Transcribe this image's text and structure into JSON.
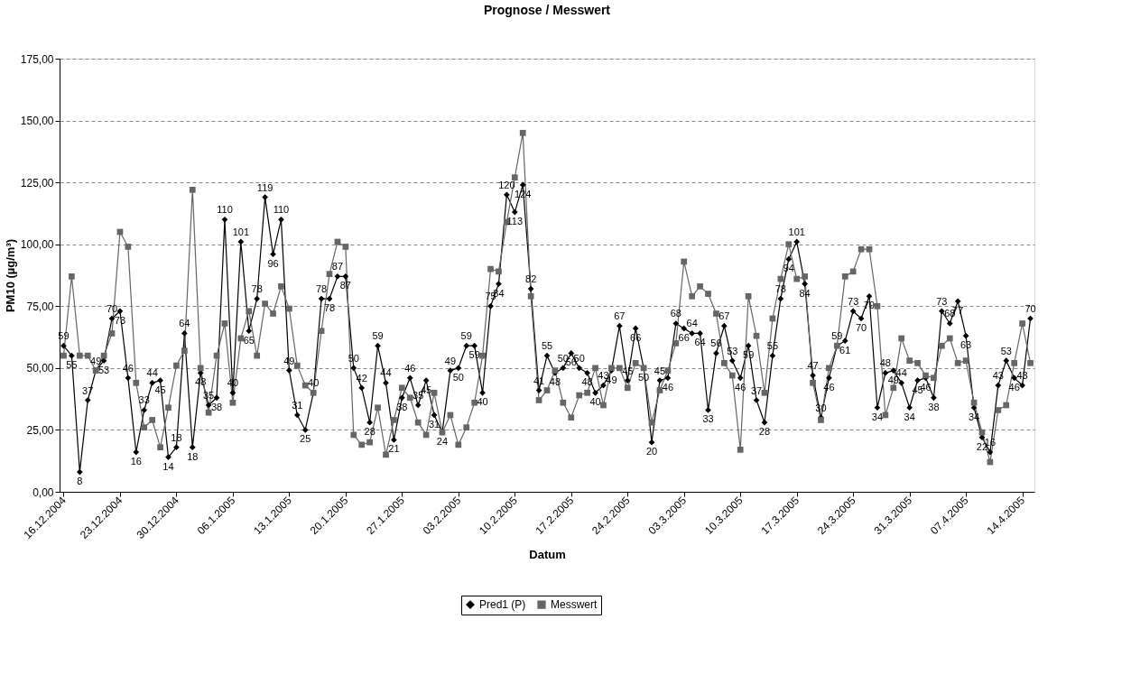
{
  "chart_data": {
    "type": "line",
    "title": "Prognose / Messwert",
    "xlabel": "Datum",
    "ylabel": "PM10 (µg/m³)",
    "x": [
      "2004-12-16",
      "2004-12-17",
      "2004-12-18",
      "2004-12-19",
      "2004-12-20",
      "2004-12-21",
      "2004-12-22",
      "2004-12-23",
      "2004-12-24",
      "2004-12-25",
      "2004-12-26",
      "2004-12-27",
      "2004-12-28",
      "2004-12-29",
      "2004-12-30",
      "2004-12-31",
      "2005-01-01",
      "2005-01-02",
      "2005-01-03",
      "2005-01-04",
      "2005-01-05",
      "2005-01-06",
      "2005-01-07",
      "2005-01-08",
      "2005-01-09",
      "2005-01-10",
      "2005-01-11",
      "2005-01-12",
      "2005-01-13",
      "2005-01-14",
      "2005-01-15",
      "2005-01-16",
      "2005-01-17",
      "2005-01-18",
      "2005-01-19",
      "2005-01-20",
      "2005-01-21",
      "2005-01-22",
      "2005-01-23",
      "2005-01-24",
      "2005-01-25",
      "2005-01-26",
      "2005-01-27",
      "2005-01-28",
      "2005-01-29",
      "2005-01-30",
      "2005-01-31",
      "2005-02-01",
      "2005-02-02",
      "2005-02-03",
      "2005-02-04",
      "2005-02-05",
      "2005-02-06",
      "2005-02-07",
      "2005-02-08",
      "2005-02-09",
      "2005-02-10",
      "2005-02-11",
      "2005-02-12",
      "2005-02-13",
      "2005-02-14",
      "2005-02-15",
      "2005-02-16",
      "2005-02-17",
      "2005-02-18",
      "2005-02-19",
      "2005-02-20",
      "2005-02-21",
      "2005-02-22",
      "2005-02-23",
      "2005-02-24",
      "2005-02-25",
      "2005-02-26",
      "2005-02-27",
      "2005-02-28",
      "2005-03-01",
      "2005-03-02",
      "2005-03-03",
      "2005-03-04",
      "2005-03-05",
      "2005-03-06",
      "2005-03-07",
      "2005-03-08",
      "2005-03-09",
      "2005-03-10",
      "2005-03-11",
      "2005-03-12",
      "2005-03-13",
      "2005-03-14",
      "2005-03-15",
      "2005-03-16",
      "2005-03-17",
      "2005-03-18",
      "2005-03-19",
      "2005-03-20",
      "2005-03-21",
      "2005-03-22",
      "2005-03-23",
      "2005-03-24",
      "2005-03-25",
      "2005-03-26",
      "2005-03-27",
      "2005-03-28",
      "2005-03-29",
      "2005-03-30",
      "2005-03-31",
      "2005-04-01",
      "2005-04-02",
      "2005-04-03",
      "2005-04-04",
      "2005-04-05",
      "2005-04-06",
      "2005-04-07",
      "2005-04-08",
      "2005-04-09",
      "2005-04-10",
      "2005-04-11",
      "2005-04-12",
      "2005-04-13",
      "2005-04-14",
      "2005-04-15"
    ],
    "xlim": [
      "2004-12-15T12:00",
      "2005-04-15T12:00"
    ],
    "xticks": [
      {
        "value": "2004-12-16",
        "label": "16.12.2004"
      },
      {
        "value": "2004-12-23",
        "label": "23.12.2004"
      },
      {
        "value": "2004-12-30",
        "label": "30.12.2004"
      },
      {
        "value": "2005-01-06",
        "label": "06.1.2005"
      },
      {
        "value": "2005-01-13",
        "label": "13.1.2005"
      },
      {
        "value": "2005-01-20",
        "label": "20.1.2005"
      },
      {
        "value": "2005-01-27",
        "label": "27.1.2005"
      },
      {
        "value": "2005-02-03",
        "label": "03.2.2005"
      },
      {
        "value": "2005-02-10",
        "label": "10.2.2005"
      },
      {
        "value": "2005-02-17",
        "label": "17.2.2005"
      },
      {
        "value": "2005-02-24",
        "label": "24.2.2005"
      },
      {
        "value": "2005-03-03",
        "label": "03.3.2005"
      },
      {
        "value": "2005-03-10",
        "label": "10.3.2005"
      },
      {
        "value": "2005-03-17",
        "label": "17.3.2005"
      },
      {
        "value": "2005-03-24",
        "label": "24.3.2005"
      },
      {
        "value": "2005-03-31",
        "label": "31.3.2005"
      },
      {
        "value": "2005-04-07",
        "label": "07.4.2005"
      },
      {
        "value": "2005-04-14",
        "label": "14.4.2005"
      }
    ],
    "ylim": [
      0,
      175
    ],
    "yticks": [
      {
        "value": 0,
        "label": "0,00"
      },
      {
        "value": 25,
        "label": "25,00"
      },
      {
        "value": 50,
        "label": "50,00"
      },
      {
        "value": 75,
        "label": "75,00"
      },
      {
        "value": 100,
        "label": "100,00"
      },
      {
        "value": 125,
        "label": "125,00"
      },
      {
        "value": 150,
        "label": "150,00"
      },
      {
        "value": 175,
        "label": "175,00"
      }
    ],
    "grid": "y",
    "legend": "bottom",
    "line_style": "solid",
    "series": [
      {
        "name": "Pred1 (P)",
        "color": "#000000",
        "marker": "diamond",
        "data_labels": true,
        "values": [
          59,
          55,
          8,
          37,
          49,
          53,
          70,
          73,
          46,
          16,
          33,
          44,
          45,
          14,
          18,
          64,
          18,
          48,
          35,
          38,
          110,
          40,
          101,
          65,
          78,
          119,
          96,
          110,
          49,
          31,
          25,
          40,
          78,
          78,
          87,
          87,
          50,
          42,
          28,
          59,
          44,
          21,
          38,
          46,
          35,
          45,
          31,
          24,
          49,
          50,
          59,
          59,
          40,
          75,
          84,
          120,
          113,
          124,
          82,
          41,
          55,
          48,
          50,
          56,
          50,
          48,
          40,
          43,
          49,
          67,
          45,
          66,
          50,
          20,
          45,
          46,
          68,
          66,
          64,
          64,
          33,
          56,
          67,
          53,
          46,
          59,
          37,
          28,
          55,
          78,
          94,
          101,
          84,
          47,
          30,
          46,
          59,
          61,
          73,
          70,
          79,
          34,
          48,
          49,
          44,
          34,
          45,
          46,
          38,
          73,
          68,
          77,
          63,
          34,
          22,
          16,
          43,
          53,
          46,
          43,
          70
        ]
      },
      {
        "name": "Messwert",
        "color": "#666666",
        "marker": "square",
        "values": [
          55,
          87,
          55,
          55,
          49,
          55,
          64,
          105,
          99,
          44,
          26,
          29,
          18,
          34,
          51,
          57,
          122,
          50,
          32,
          55,
          68,
          36,
          62,
          73,
          55,
          76,
          72,
          83,
          74,
          51,
          43,
          40,
          65,
          88,
          101,
          99,
          23,
          19,
          20,
          34,
          15,
          29,
          42,
          38,
          28,
          23,
          40,
          24,
          31,
          19,
          26,
          36,
          55,
          90,
          89,
          109,
          127,
          145,
          79,
          37,
          41,
          49,
          36,
          30,
          39,
          40,
          50,
          35,
          50,
          50,
          42,
          52,
          50,
          28,
          41,
          49,
          60,
          93,
          79,
          83,
          80,
          72,
          52,
          47,
          17,
          79,
          63,
          40,
          70,
          86,
          100,
          86,
          87,
          44,
          29,
          50,
          59,
          87,
          89,
          98,
          98,
          75,
          31,
          42,
          62,
          53,
          52,
          47,
          46,
          59,
          62,
          52,
          53,
          36,
          24,
          12,
          33,
          35,
          52,
          68,
          52
        ]
      }
    ]
  }
}
